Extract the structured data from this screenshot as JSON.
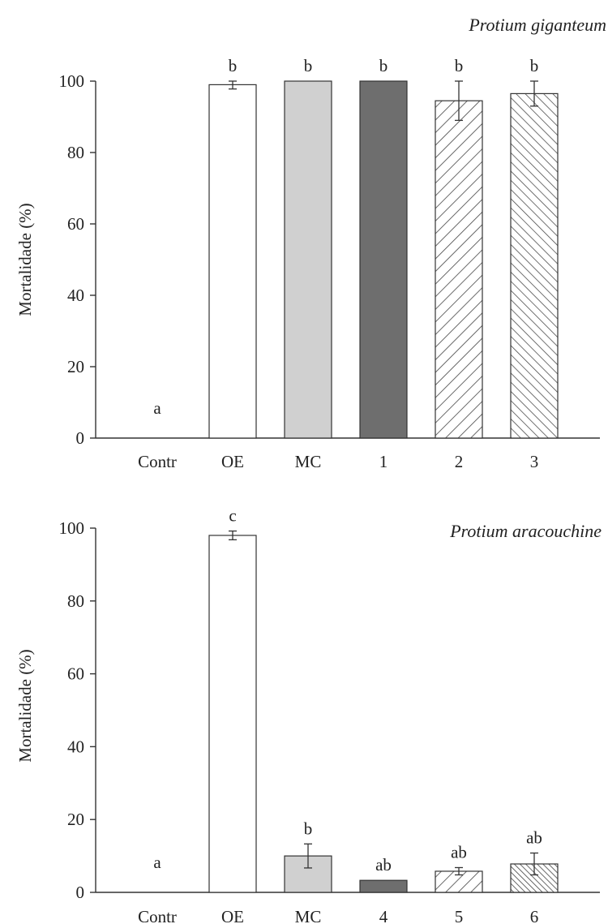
{
  "chart_data": [
    {
      "type": "bar",
      "title": "Protium giganteum",
      "ylabel": "Mortalidade (%)",
      "xlabel": "",
      "ylim": [
        0,
        100
      ],
      "yticks": [
        "0",
        "20",
        "40",
        "60",
        "80",
        "100"
      ],
      "categories": [
        "Contr",
        "OE",
        "MC",
        "1",
        "2",
        "3"
      ],
      "values": [
        0,
        99,
        100,
        100,
        94.5,
        96.5
      ],
      "errors": [
        0,
        1.2,
        0,
        0,
        5.5,
        3.5
      ],
      "significance": [
        "a",
        "b",
        "b",
        "b",
        "b",
        "b"
      ],
      "fills": [
        "none",
        "white",
        "light-gray",
        "dark-gray",
        "hatch-wide",
        "hatch-narrow"
      ],
      "grid": false
    },
    {
      "type": "bar",
      "title": "Protium aracouchine",
      "ylabel": "Mortalidade (%)",
      "xlabel": "",
      "ylim": [
        0,
        100
      ],
      "yticks": [
        "0",
        "20",
        "40",
        "60",
        "80",
        "100"
      ],
      "categories": [
        "Contr",
        "OE",
        "MC",
        "4",
        "5",
        "6"
      ],
      "values": [
        0,
        98,
        10,
        3.3,
        5.8,
        7.8
      ],
      "errors": [
        0,
        1.2,
        3.3,
        0,
        1.0,
        3.0
      ],
      "significance": [
        "a",
        "c",
        "b",
        "ab",
        "ab",
        "ab"
      ],
      "fills": [
        "none",
        "white",
        "light-gray",
        "dark-gray",
        "hatch-wide",
        "hatch-dense"
      ],
      "grid": false
    }
  ],
  "colors": {
    "white": "#ffffff",
    "light_gray": "#d0d0d0",
    "dark_gray": "#6e6e6e",
    "stroke": "#333333"
  }
}
